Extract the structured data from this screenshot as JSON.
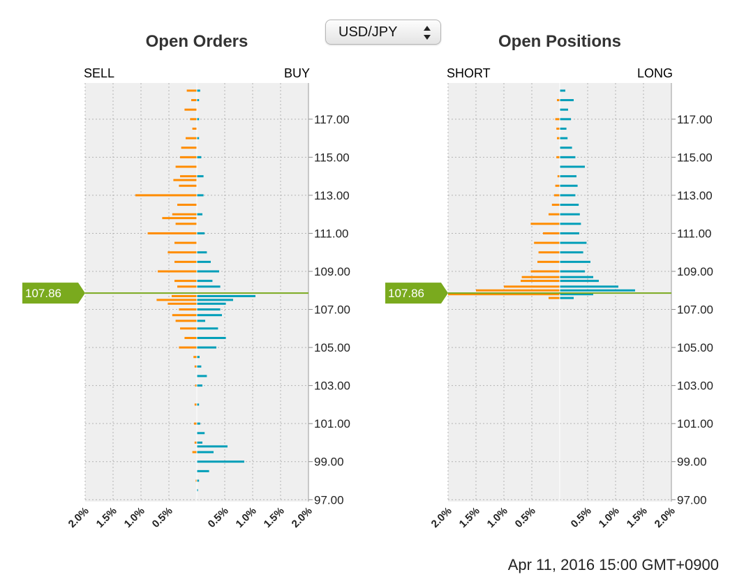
{
  "selector": {
    "value": "USD/JPY"
  },
  "timestamp": "Apr 11, 2016 15:00 GMT+0900",
  "colors": {
    "sell": "#ff8c00",
    "buy": "#009eb8",
    "price": "#7aaa1e",
    "plot_bg": "#efefef",
    "grid": "#b3b3b3"
  },
  "chart_data": [
    {
      "type": "bar",
      "title": "Open Orders",
      "left_label": "SELL",
      "right_label": "BUY",
      "orientation": "horizontal",
      "current_price": "107.86",
      "current_price_value": 107.86,
      "price_ticks": [
        "97.00",
        "99.00",
        "101.00",
        "103.00",
        "105.00",
        "107.00",
        "109.00",
        "111.00",
        "113.00",
        "115.00",
        "117.00"
      ],
      "x_ticks": [
        "2.0%",
        "1.5%",
        "1.0%",
        "0.5%",
        "",
        "0.5%",
        "1.0%",
        "1.5%",
        "2.0%"
      ],
      "xlim": [
        -2.0,
        2.0
      ],
      "ylim": [
        96.9,
        118.9
      ],
      "series": [
        {
          "name": "SELL",
          "bars": [
            [
              118.5,
              0.18
            ],
            [
              118.0,
              0.1
            ],
            [
              117.5,
              0.22
            ],
            [
              117.0,
              0.12
            ],
            [
              116.5,
              0.08
            ],
            [
              116.0,
              0.2
            ],
            [
              115.5,
              0.28
            ],
            [
              115.0,
              0.3
            ],
            [
              114.5,
              0.38
            ],
            [
              114.0,
              0.3
            ],
            [
              113.8,
              0.42
            ],
            [
              113.5,
              0.32
            ],
            [
              113.0,
              1.1
            ],
            [
              112.5,
              0.35
            ],
            [
              112.0,
              0.44
            ],
            [
              111.8,
              0.62
            ],
            [
              111.5,
              0.38
            ],
            [
              111.0,
              0.88
            ],
            [
              110.5,
              0.4
            ],
            [
              110.0,
              0.52
            ],
            [
              109.5,
              0.4
            ],
            [
              109.0,
              0.7
            ],
            [
              108.5,
              0.4
            ],
            [
              108.2,
              0.35
            ],
            [
              107.7,
              0.45
            ],
            [
              107.5,
              0.72
            ],
            [
              107.3,
              0.52
            ],
            [
              107.0,
              0.32
            ],
            [
              106.7,
              0.44
            ],
            [
              106.4,
              0.38
            ],
            [
              106.0,
              0.3
            ],
            [
              105.5,
              0.22
            ],
            [
              105.0,
              0.32
            ],
            [
              104.5,
              0.06
            ],
            [
              104.0,
              0.04
            ],
            [
              103.0,
              0.03
            ],
            [
              102.0,
              0.04
            ],
            [
              101.0,
              0.05
            ],
            [
              100.0,
              0.04
            ],
            [
              99.5,
              0.08
            ],
            [
              98.0,
              0.02
            ]
          ]
        },
        {
          "name": "BUY",
          "bars": [
            [
              118.5,
              0.06
            ],
            [
              118.0,
              0.04
            ],
            [
              117.0,
              0.04
            ],
            [
              116.0,
              0.04
            ],
            [
              115.0,
              0.08
            ],
            [
              114.0,
              0.12
            ],
            [
              113.0,
              0.12
            ],
            [
              112.0,
              0.1
            ],
            [
              111.0,
              0.14
            ],
            [
              110.0,
              0.18
            ],
            [
              109.5,
              0.25
            ],
            [
              109.0,
              0.4
            ],
            [
              108.5,
              0.28
            ],
            [
              108.2,
              0.42
            ],
            [
              107.7,
              1.05
            ],
            [
              107.5,
              0.65
            ],
            [
              107.3,
              0.52
            ],
            [
              107.0,
              0.42
            ],
            [
              106.7,
              0.45
            ],
            [
              106.4,
              0.15
            ],
            [
              106.0,
              0.38
            ],
            [
              105.5,
              0.52
            ],
            [
              105.0,
              0.35
            ],
            [
              104.5,
              0.05
            ],
            [
              104.0,
              0.08
            ],
            [
              103.5,
              0.18
            ],
            [
              103.0,
              0.1
            ],
            [
              102.0,
              0.04
            ],
            [
              101.0,
              0.06
            ],
            [
              100.5,
              0.14
            ],
            [
              100.0,
              0.1
            ],
            [
              99.8,
              0.55
            ],
            [
              99.5,
              0.3
            ],
            [
              99.0,
              0.85
            ],
            [
              98.5,
              0.22
            ],
            [
              98.0,
              0.04
            ],
            [
              97.5,
              0.02
            ]
          ]
        }
      ]
    },
    {
      "type": "bar",
      "title": "Open Positions",
      "left_label": "SHORT",
      "right_label": "LONG",
      "orientation": "horizontal",
      "current_price": "107.86",
      "current_price_value": 107.86,
      "price_ticks": [
        "97.00",
        "99.00",
        "101.00",
        "103.00",
        "105.00",
        "107.00",
        "109.00",
        "111.00",
        "113.00",
        "115.00",
        "117.00"
      ],
      "x_ticks": [
        "2.0%",
        "1.5%",
        "1.0%",
        "0.5%",
        "",
        "0.5%",
        "1.0%",
        "1.5%",
        "2.0%"
      ],
      "xlim": [
        -2.0,
        2.0
      ],
      "ylim": [
        96.9,
        118.9
      ],
      "series": [
        {
          "name": "SHORT",
          "bars": [
            [
              118.0,
              0.05
            ],
            [
              117.0,
              0.08
            ],
            [
              116.5,
              0.06
            ],
            [
              116.0,
              0.05
            ],
            [
              115.0,
              0.06
            ],
            [
              114.0,
              0.04
            ],
            [
              113.5,
              0.08
            ],
            [
              113.0,
              0.1
            ],
            [
              112.5,
              0.14
            ],
            [
              112.0,
              0.2
            ],
            [
              111.5,
              0.52
            ],
            [
              111.0,
              0.3
            ],
            [
              110.5,
              0.46
            ],
            [
              110.0,
              0.38
            ],
            [
              109.5,
              0.4
            ],
            [
              109.0,
              0.52
            ],
            [
              108.7,
              0.68
            ],
            [
              108.5,
              0.7
            ],
            [
              108.2,
              1.0
            ],
            [
              108.0,
              1.5
            ],
            [
              107.8,
              2.0
            ],
            [
              107.6,
              0.2
            ]
          ]
        },
        {
          "name": "LONG",
          "bars": [
            [
              118.5,
              0.1
            ],
            [
              118.0,
              0.25
            ],
            [
              117.5,
              0.15
            ],
            [
              117.0,
              0.2
            ],
            [
              116.5,
              0.12
            ],
            [
              116.0,
              0.14
            ],
            [
              115.5,
              0.22
            ],
            [
              115.0,
              0.28
            ],
            [
              114.5,
              0.45
            ],
            [
              114.0,
              0.3
            ],
            [
              113.5,
              0.32
            ],
            [
              113.0,
              0.28
            ],
            [
              112.5,
              0.34
            ],
            [
              112.0,
              0.36
            ],
            [
              111.5,
              0.38
            ],
            [
              111.0,
              0.35
            ],
            [
              110.5,
              0.48
            ],
            [
              110.0,
              0.42
            ],
            [
              109.5,
              0.55
            ],
            [
              109.0,
              0.45
            ],
            [
              108.7,
              0.6
            ],
            [
              108.5,
              0.7
            ],
            [
              108.2,
              1.05
            ],
            [
              108.0,
              1.35
            ],
            [
              107.8,
              0.6
            ],
            [
              107.6,
              0.25
            ]
          ]
        }
      ]
    }
  ]
}
